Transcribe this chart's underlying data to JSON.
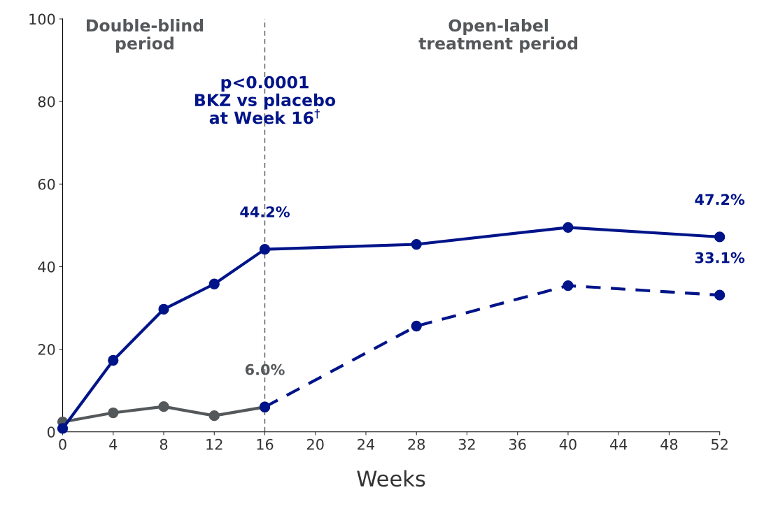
{
  "chart_data": {
    "type": "line",
    "xlabel": "Weeks",
    "xlim": [
      0,
      52
    ],
    "xticks": [
      0,
      4,
      8,
      12,
      16,
      20,
      24,
      28,
      32,
      36,
      40,
      44,
      48,
      52
    ],
    "ylim": [
      0,
      100
    ],
    "yticks": [
      0,
      20,
      40,
      60,
      80,
      100
    ],
    "grid": false,
    "legend": false,
    "marker": "circle",
    "series": [
      {
        "color": "#54585a",
        "x": [
          0,
          4,
          8,
          12,
          16
        ],
        "values": [
          2.4,
          4.6,
          6.1,
          3.9,
          6.0
        ],
        "value_labels": [
          null,
          null,
          null,
          null,
          "6.0%"
        ],
        "line_style": "solid"
      },
      {
        "color": "#001489",
        "x": [
          0,
          4,
          8,
          12,
          16,
          28,
          40,
          52
        ],
        "values": [
          0.8,
          17.3,
          29.7,
          35.8,
          44.2,
          45.4,
          49.5,
          47.2
        ],
        "value_labels": [
          null,
          null,
          null,
          null,
          "44.2%",
          null,
          null,
          "47.2%"
        ],
        "line_style": "solid"
      },
      {
        "color": "#001489",
        "x": [
          16,
          28,
          40,
          52
        ],
        "values": [
          6.0,
          25.6,
          35.4,
          33.1
        ],
        "value_labels": [
          null,
          null,
          null,
          "33.1%"
        ],
        "line_style": "dashed"
      }
    ],
    "ref_lines": [
      {
        "axis": "x",
        "value": 16,
        "label": null,
        "color": "#54585a",
        "line_style": "dashed"
      }
    ],
    "annotations": [
      "Double-blind\nperiod",
      "Open-label\ntreatment period",
      "p<0.0001\nBKZ vs placebo\nat Week 16$^{†}$"
    ]
  }
}
